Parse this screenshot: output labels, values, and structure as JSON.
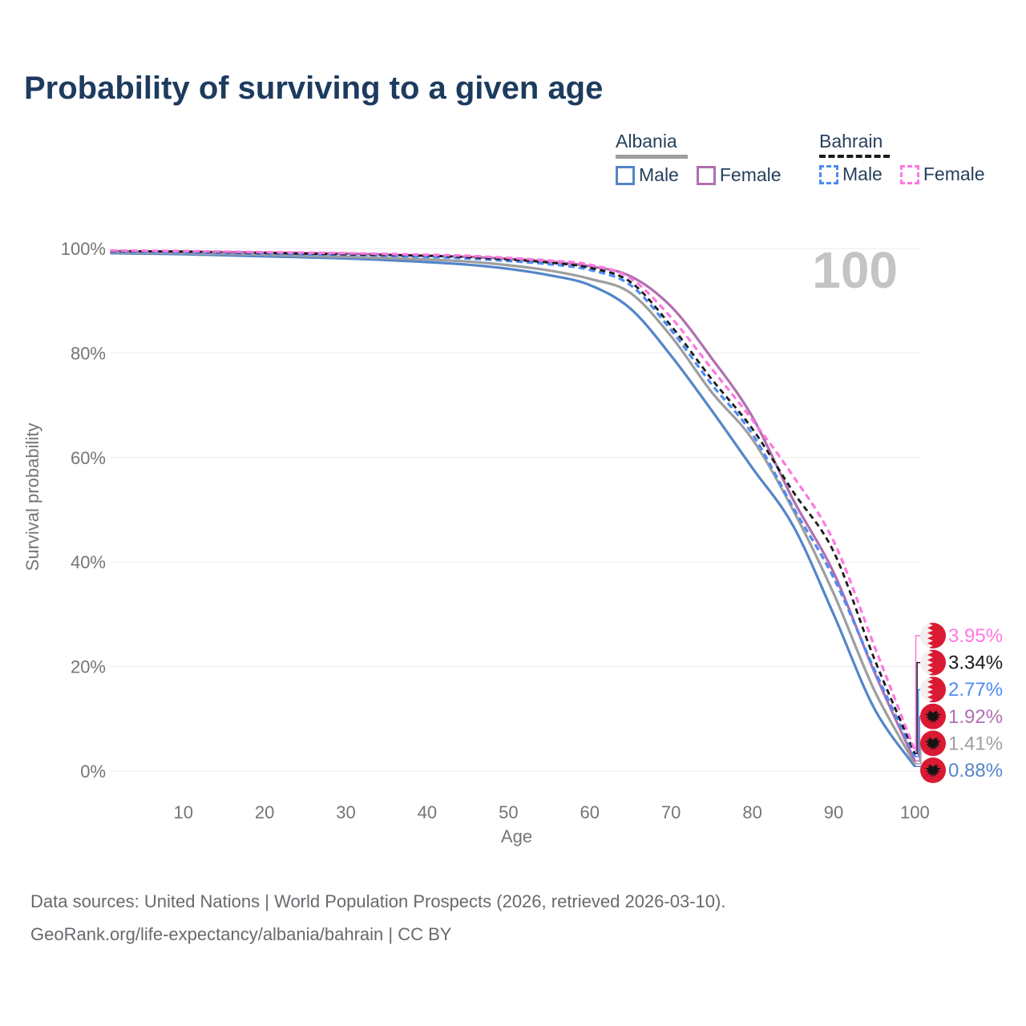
{
  "title": "Probability of surviving to a given age",
  "watermark": "100",
  "legend": {
    "groups": [
      {
        "name": "Albania",
        "line_style": "solid",
        "line_color": "#9E9E9E",
        "items": [
          {
            "label": "Male",
            "color": "#5585C8",
            "style": "solid"
          },
          {
            "label": "Female",
            "color": "#B06FAF",
            "style": "solid"
          }
        ]
      },
      {
        "name": "Bahrain",
        "line_style": "dashed",
        "line_color": "#1b1b1b",
        "items": [
          {
            "label": "Male",
            "color": "#4C8BF5",
            "style": "dashed"
          },
          {
            "label": "Female",
            "color": "#FF77DF",
            "style": "dashed"
          }
        ]
      }
    ]
  },
  "flags": {
    "albania": {
      "red": "#DA1A33",
      "eagle": "#141414"
    },
    "bahrain": {
      "red": "#DA1A33",
      "white": "#F2EFEE"
    }
  },
  "chart_data": {
    "type": "line",
    "title": "Probability of surviving to a given age",
    "xlabel": "Age",
    "ylabel": "Survival probability",
    "xlim": [
      1,
      100
    ],
    "ylim": [
      0,
      100
    ],
    "grid": "horizontal-only",
    "legend_position": "top-right",
    "x_ticks": [
      10,
      20,
      30,
      40,
      50,
      60,
      70,
      80,
      90,
      100
    ],
    "y_ticks": [
      0,
      20,
      40,
      60,
      80,
      100
    ],
    "y_tick_suffix": "%",
    "ages": [
      1,
      10,
      20,
      30,
      40,
      45,
      50,
      55,
      60,
      65,
      70,
      75,
      80,
      85,
      90,
      95,
      100
    ],
    "series": [
      {
        "id": "albania-male",
        "name": "Albania Male",
        "country": "Albania",
        "sex": "Male",
        "flag": "albania",
        "color": "#5585C8",
        "dash": null,
        "end_label": "0.88%",
        "end_value": 0.88,
        "values": [
          99.1,
          98.9,
          98.5,
          98.1,
          97.4,
          96.9,
          96.1,
          94.9,
          93.0,
          88.5,
          79.5,
          69.0,
          58.0,
          47.0,
          30.0,
          12.0,
          0.88
        ]
      },
      {
        "id": "albania-total",
        "name": "Albania",
        "country": "Albania",
        "sex": "Both",
        "flag": "albania",
        "color": "#9E9E9E",
        "dash": null,
        "end_label": "1.41%",
        "end_value": 1.41,
        "values": [
          99.3,
          99.1,
          98.8,
          98.4,
          97.9,
          97.5,
          96.8,
          95.8,
          94.2,
          91.5,
          83.2,
          72.5,
          63.5,
          50.0,
          34.0,
          15.5,
          1.41
        ]
      },
      {
        "id": "albania-female",
        "name": "Albania Female",
        "country": "Albania",
        "sex": "Female",
        "flag": "albania",
        "color": "#B06FAF",
        "dash": null,
        "end_label": "1.92%",
        "end_value": 1.92,
        "values": [
          99.5,
          99.4,
          99.2,
          99.0,
          98.6,
          98.4,
          98.0,
          97.5,
          96.6,
          94.7,
          88.9,
          79.0,
          67.8,
          52.0,
          38.0,
          19.0,
          1.92
        ]
      },
      {
        "id": "bahrain-male",
        "name": "Bahrain Male",
        "country": "Bahrain",
        "sex": "Male",
        "flag": "bahrain",
        "color": "#4C8BF5",
        "dash": "8 5",
        "end_label": "2.77%",
        "end_value": 2.77,
        "values": [
          99.4,
          99.25,
          99.0,
          98.8,
          98.4,
          98.1,
          97.6,
          97.0,
          95.9,
          93.0,
          84.4,
          74.0,
          64.5,
          50.5,
          37.0,
          19.5,
          2.77
        ]
      },
      {
        "id": "bahrain-total",
        "name": "Bahrain",
        "country": "Bahrain",
        "sex": "Both",
        "flag": "bahrain",
        "color": "#1b1b1b",
        "dash": "7 5",
        "end_label": "3.34%",
        "end_value": 3.34,
        "values": [
          99.5,
          99.4,
          99.15,
          98.9,
          98.6,
          98.35,
          97.9,
          97.3,
          96.3,
          93.6,
          85.2,
          75.0,
          65.5,
          53.5,
          42.0,
          21.5,
          3.34
        ]
      },
      {
        "id": "bahrain-female",
        "name": "Bahrain Female",
        "country": "Bahrain",
        "sex": "Female",
        "flag": "bahrain",
        "color": "#FF77DF",
        "dash": "8 5",
        "end_label": "3.95%",
        "end_value": 3.95,
        "values": [
          99.6,
          99.5,
          99.3,
          99.1,
          98.8,
          98.6,
          98.2,
          97.7,
          96.9,
          94.3,
          86.8,
          77.0,
          67.2,
          56.5,
          44.0,
          24.0,
          3.95
        ]
      }
    ]
  },
  "footer": {
    "line1": "Data sources: United Nations | World Population Prospects (2026, retrieved 2026-03-10).",
    "line2": "GeoRank.org/life-expectancy/albania/bahrain | CC BY"
  }
}
